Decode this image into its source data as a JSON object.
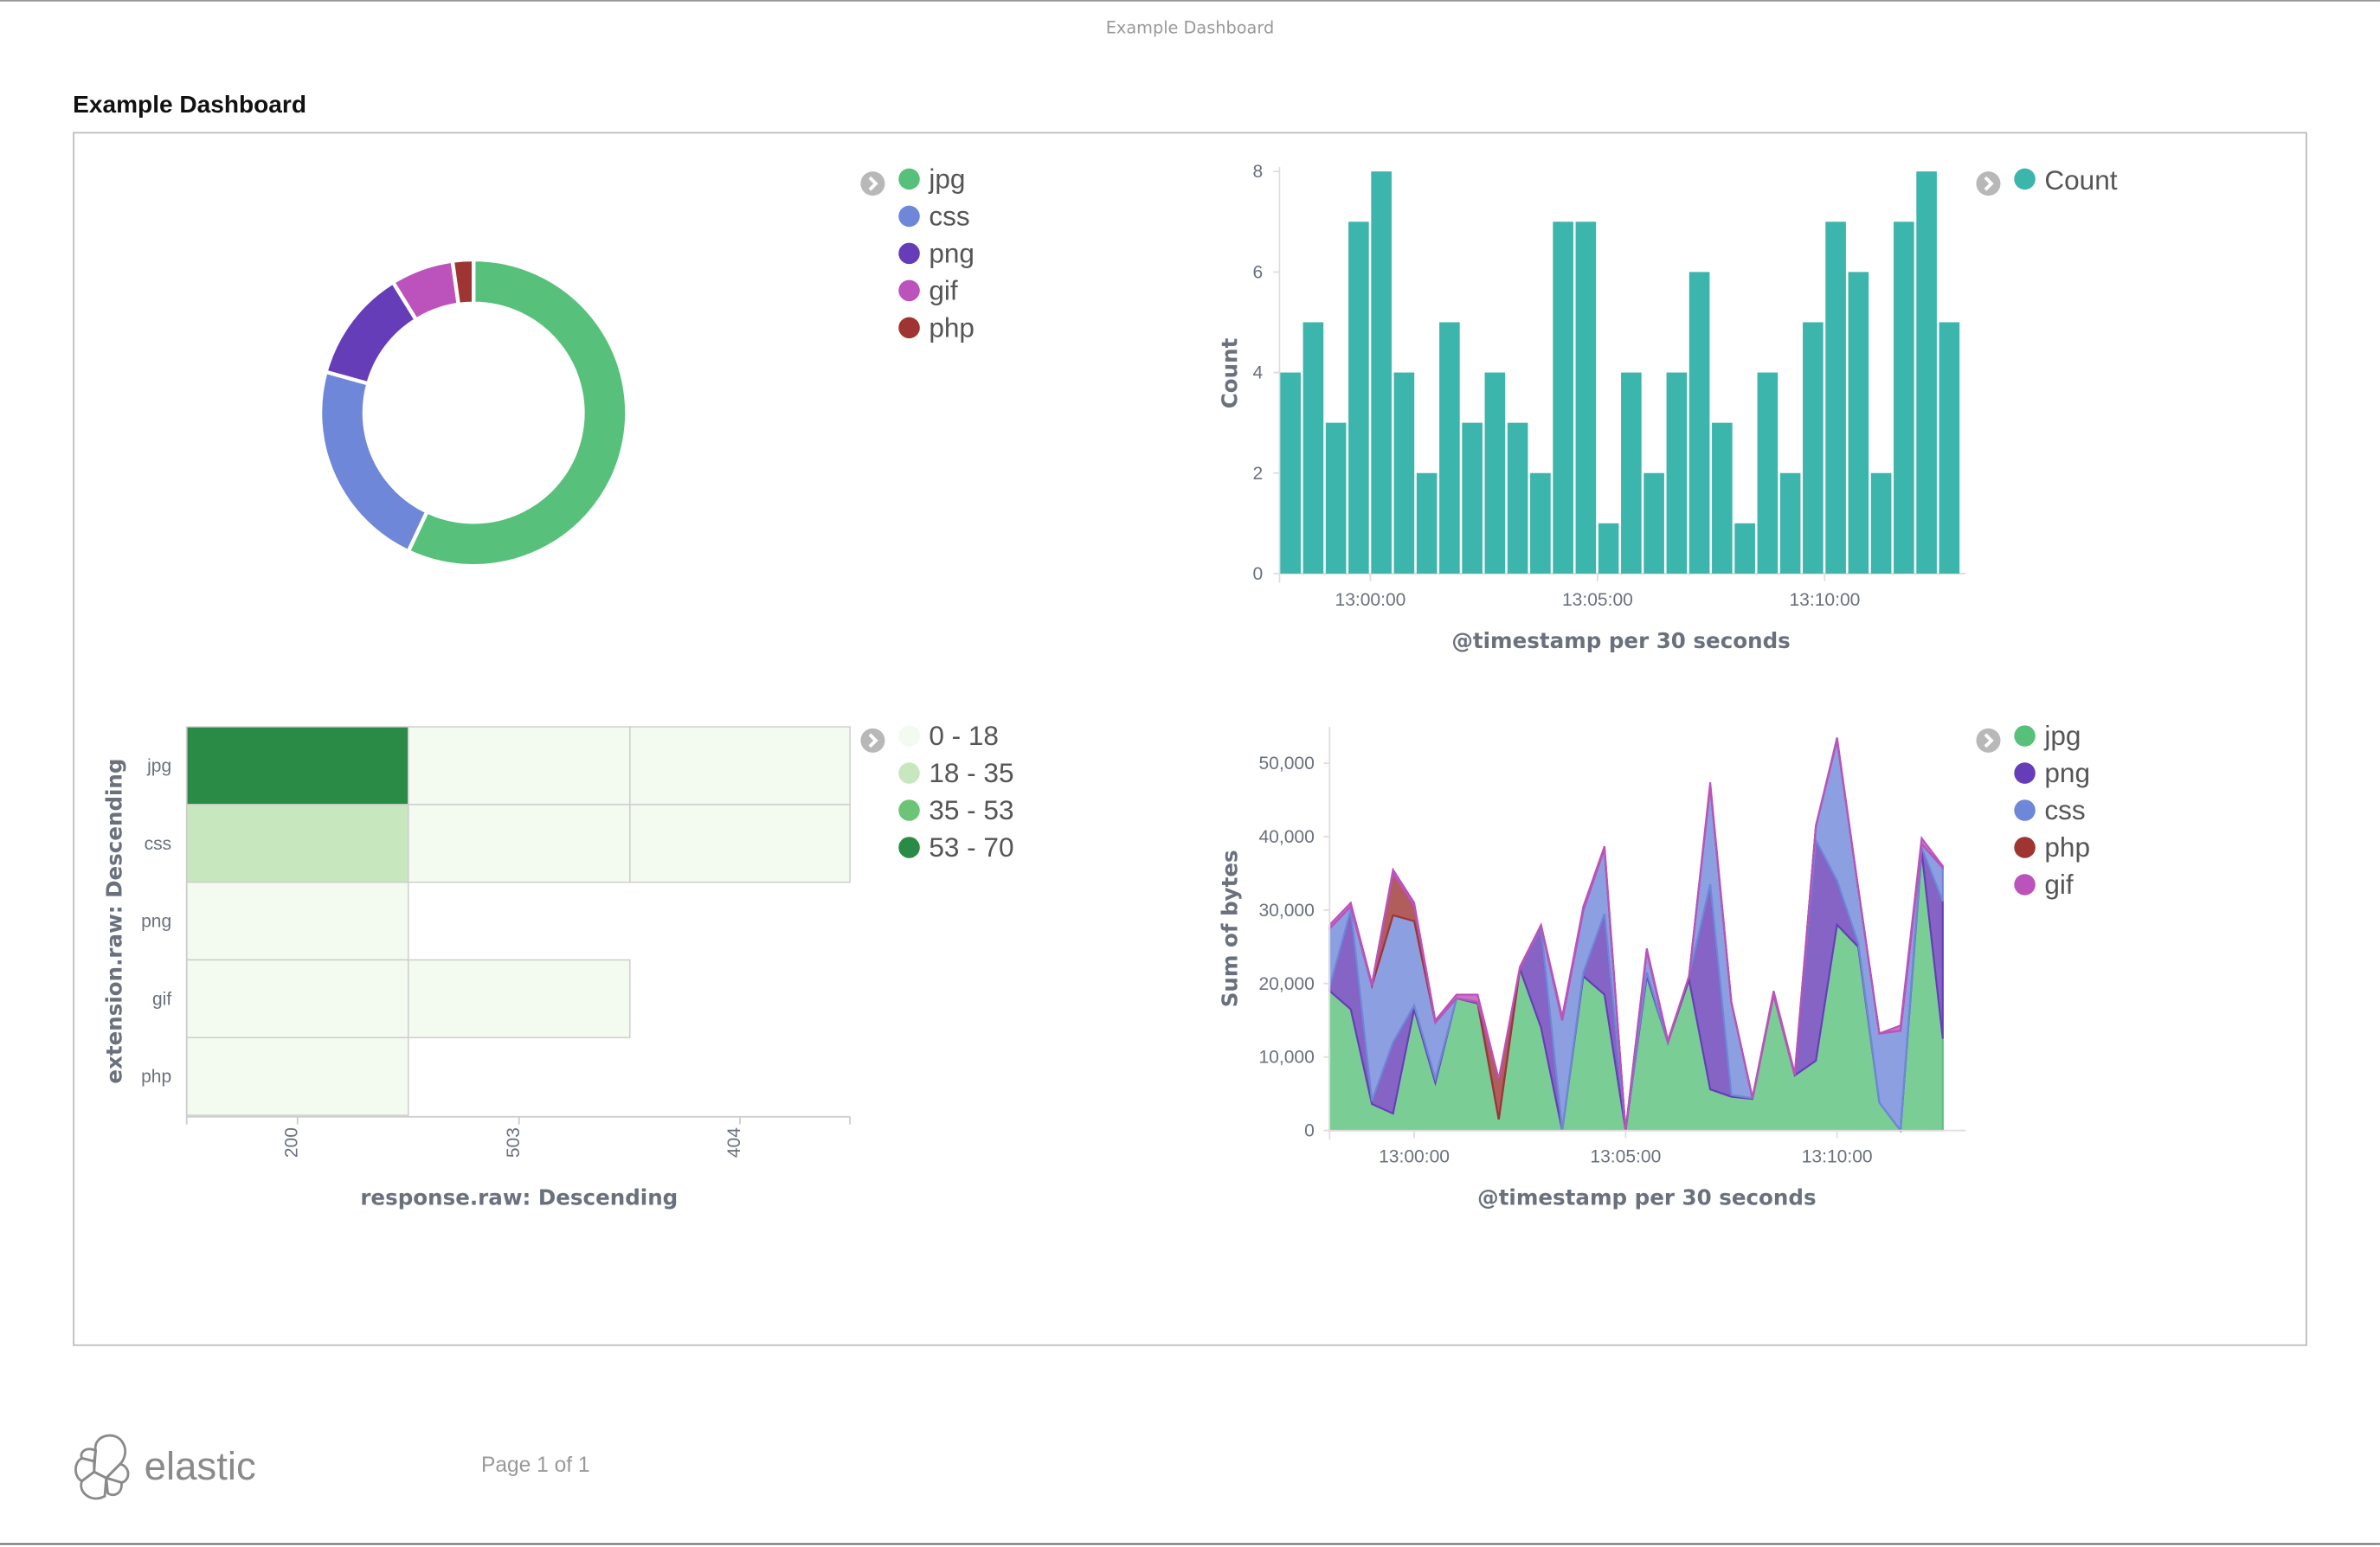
{
  "document_title": "Example Dashboard",
  "dashboard_title": "Example Dashboard",
  "footer": {
    "logo_text": "elastic",
    "page": "Page 1 of 1"
  },
  "colors": {
    "jpg": "#57c17b",
    "css": "#6f87d8",
    "png": "#663db8",
    "gif": "#bc52bc",
    "php": "#9e3533",
    "count": "#3cb5ac"
  },
  "chart_data": [
    {
      "type": "pie",
      "donut": true,
      "legend_position": "right",
      "legend": [
        "jpg",
        "css",
        "png",
        "gif",
        "php"
      ],
      "slices": [
        {
          "name": "jpg",
          "value": 57.0
        },
        {
          "name": "css",
          "value": 22.3
        },
        {
          "name": "png",
          "value": 11.9
        },
        {
          "name": "gif",
          "value": 6.6
        },
        {
          "name": "php",
          "value": 2.2
        }
      ]
    },
    {
      "type": "bar",
      "xlabel": "@timestamp per 30 seconds",
      "ylabel": "Count",
      "ylim": [
        0,
        8
      ],
      "yticks": [
        "0",
        "2",
        "4",
        "6",
        "8"
      ],
      "xticks": [
        "13:00:00",
        "13:05:00",
        "13:10:00"
      ],
      "legend_position": "right",
      "series": [
        {
          "name": "Count",
          "values": [
            4,
            5,
            3,
            7,
            8,
            4,
            2,
            5,
            3,
            4,
            3,
            2,
            7,
            7,
            1,
            4,
            2,
            4,
            6,
            3,
            1,
            4,
            2,
            5,
            7,
            6,
            2,
            7,
            8,
            5
          ]
        }
      ],
      "x_start": "12:58:00",
      "x_interval_seconds": 30
    },
    {
      "type": "heatmap",
      "xlabel": "response.raw: Descending",
      "ylabel": "extension.raw: Descending",
      "x_categories": [
        "200",
        "503",
        "404"
      ],
      "y_categories": [
        "jpg",
        "css",
        "png",
        "gif",
        "php"
      ],
      "legend_position": "right",
      "legend": [
        {
          "label": "0 - 18",
          "color": "#f3faef"
        },
        {
          "label": "18 - 35",
          "color": "#c7e8bf"
        },
        {
          "label": "35 - 53",
          "color": "#6cc476"
        },
        {
          "label": "53 - 70",
          "color": "#2a8b46"
        }
      ],
      "cells_bucket_index": [
        [
          3,
          0,
          0
        ],
        [
          1,
          0,
          0
        ],
        [
          0,
          null,
          null
        ],
        [
          0,
          0,
          null
        ],
        [
          0,
          null,
          null
        ]
      ]
    },
    {
      "type": "area",
      "stacked": true,
      "xlabel": "@timestamp per 30 seconds",
      "ylabel": "Sum of bytes",
      "ylim": [
        0,
        55000
      ],
      "yticks": [
        "0",
        "10,000",
        "20,000",
        "30,000",
        "40,000",
        "50,000"
      ],
      "xticks": [
        "13:00:00",
        "13:05:00",
        "13:10:00"
      ],
      "x_start": "12:58:00",
      "x_interval_seconds": 30,
      "legend_position": "right",
      "legend": [
        "jpg",
        "png",
        "css",
        "php",
        "gif"
      ],
      "series": [
        {
          "name": "jpg",
          "values": [
            19000,
            16500,
            3600,
            2300,
            16500,
            6500,
            18000,
            17300,
            1500,
            22000,
            14000,
            0,
            21000,
            18500,
            0,
            21000,
            12000,
            20500,
            5600,
            4600,
            4300,
            18500,
            7500,
            9500,
            28000,
            25000,
            3800,
            0,
            38000,
            12500
          ]
        },
        {
          "name": "png",
          "values": [
            500,
            13500,
            400,
            9700,
            500,
            500,
            0,
            200,
            0,
            0,
            13500,
            0,
            500,
            11000,
            0,
            500,
            0,
            500,
            27900,
            200,
            100,
            0,
            0,
            30000,
            6000,
            500,
            0,
            0,
            500,
            18700
          ]
        },
        {
          "name": "css",
          "values": [
            8000,
            500,
            15700,
            17300,
            11500,
            7700,
            0,
            0,
            0,
            0,
            300,
            15000,
            8500,
            8900,
            0,
            3000,
            0,
            0,
            13500,
            12700,
            0,
            0,
            0,
            2000,
            19200,
            7500,
            9400,
            13600,
            500,
            4600
          ]
        },
        {
          "name": "php",
          "values": [
            0,
            0,
            0,
            5700,
            2000,
            0,
            0,
            0,
            5500,
            0,
            0,
            0,
            0,
            0,
            0,
            0,
            0,
            0,
            0,
            0,
            0,
            0,
            0,
            0,
            0,
            0,
            0,
            0,
            0,
            0
          ]
        },
        {
          "name": "gif",
          "values": [
            500,
            500,
            300,
            500,
            500,
            300,
            500,
            1000,
            0,
            300,
            200,
            500,
            500,
            300,
            0,
            300,
            300,
            0,
            400,
            0,
            100,
            500,
            300,
            0,
            300,
            0,
            0,
            700,
            800,
            200
          ]
        }
      ]
    }
  ]
}
